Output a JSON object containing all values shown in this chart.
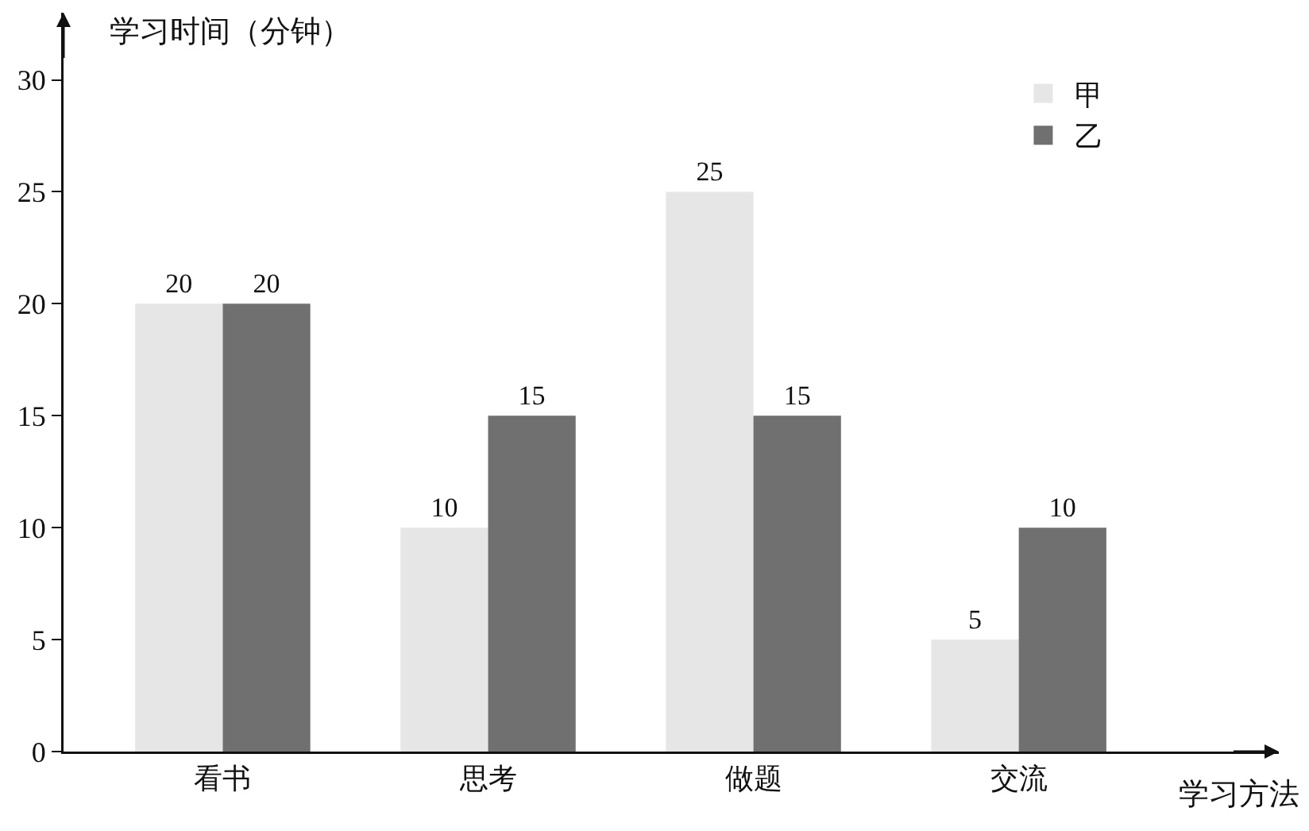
{
  "chart_data": {
    "type": "bar",
    "xlabel": "学习方法",
    "ylabel": "学习时间（分钟）",
    "categories": [
      "看书",
      "思考",
      "做题",
      "交流"
    ],
    "series": [
      {
        "name": "甲",
        "color": "#e6e6e6",
        "values": [
          20,
          10,
          25,
          5
        ]
      },
      {
        "name": "乙",
        "color": "#707070",
        "values": [
          20,
          15,
          15,
          10
        ]
      }
    ],
    "ylim": [
      0,
      33
    ],
    "yticks": [
      0,
      5,
      10,
      15,
      20,
      25,
      30
    ],
    "grid": false,
    "legend": "top right",
    "data_labels": true
  }
}
